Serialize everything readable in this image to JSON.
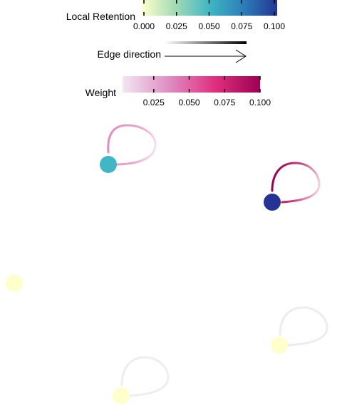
{
  "legends": {
    "retention": {
      "title": "Local Retention",
      "ticks": [
        "0.000",
        "0.025",
        "0.050",
        "0.075",
        "0.100"
      ],
      "tick_values": [
        0,
        0.025,
        0.05,
        0.075,
        0.1
      ],
      "range": [
        0,
        0.1
      ],
      "colors": [
        "#ffffcc",
        "#a1dab4",
        "#41b6c4",
        "#2c7fb8",
        "#253494"
      ]
    },
    "edge_direction": {
      "title": "Edge direction"
    },
    "weight": {
      "title": "Weight",
      "ticks": [
        "0.025",
        "0.050",
        "0.075",
        "0.100"
      ],
      "tick_values": [
        0.025,
        0.05,
        0.075,
        0.1
      ],
      "range": [
        0.003,
        0.1
      ],
      "colors": [
        "#f2e6f2",
        "#df8ec4",
        "#e0307f",
        "#9d0052"
      ]
    }
  },
  "graph": {
    "nodes": [
      {
        "id": "n1",
        "color": "#41b6c4"
      },
      {
        "id": "n2",
        "color": "#253494"
      },
      {
        "id": "n3",
        "color": "#ffffcc"
      },
      {
        "id": "n4",
        "color": "#ffffcc"
      },
      {
        "id": "n5",
        "color": "#ffffcc"
      }
    ],
    "self_loops": [
      {
        "node": "n1",
        "weight": 0.05
      },
      {
        "node": "n2",
        "weight": 0.1
      },
      {
        "node": "n4",
        "weight": 0.005
      },
      {
        "node": "n5",
        "weight": 0.005
      }
    ]
  }
}
